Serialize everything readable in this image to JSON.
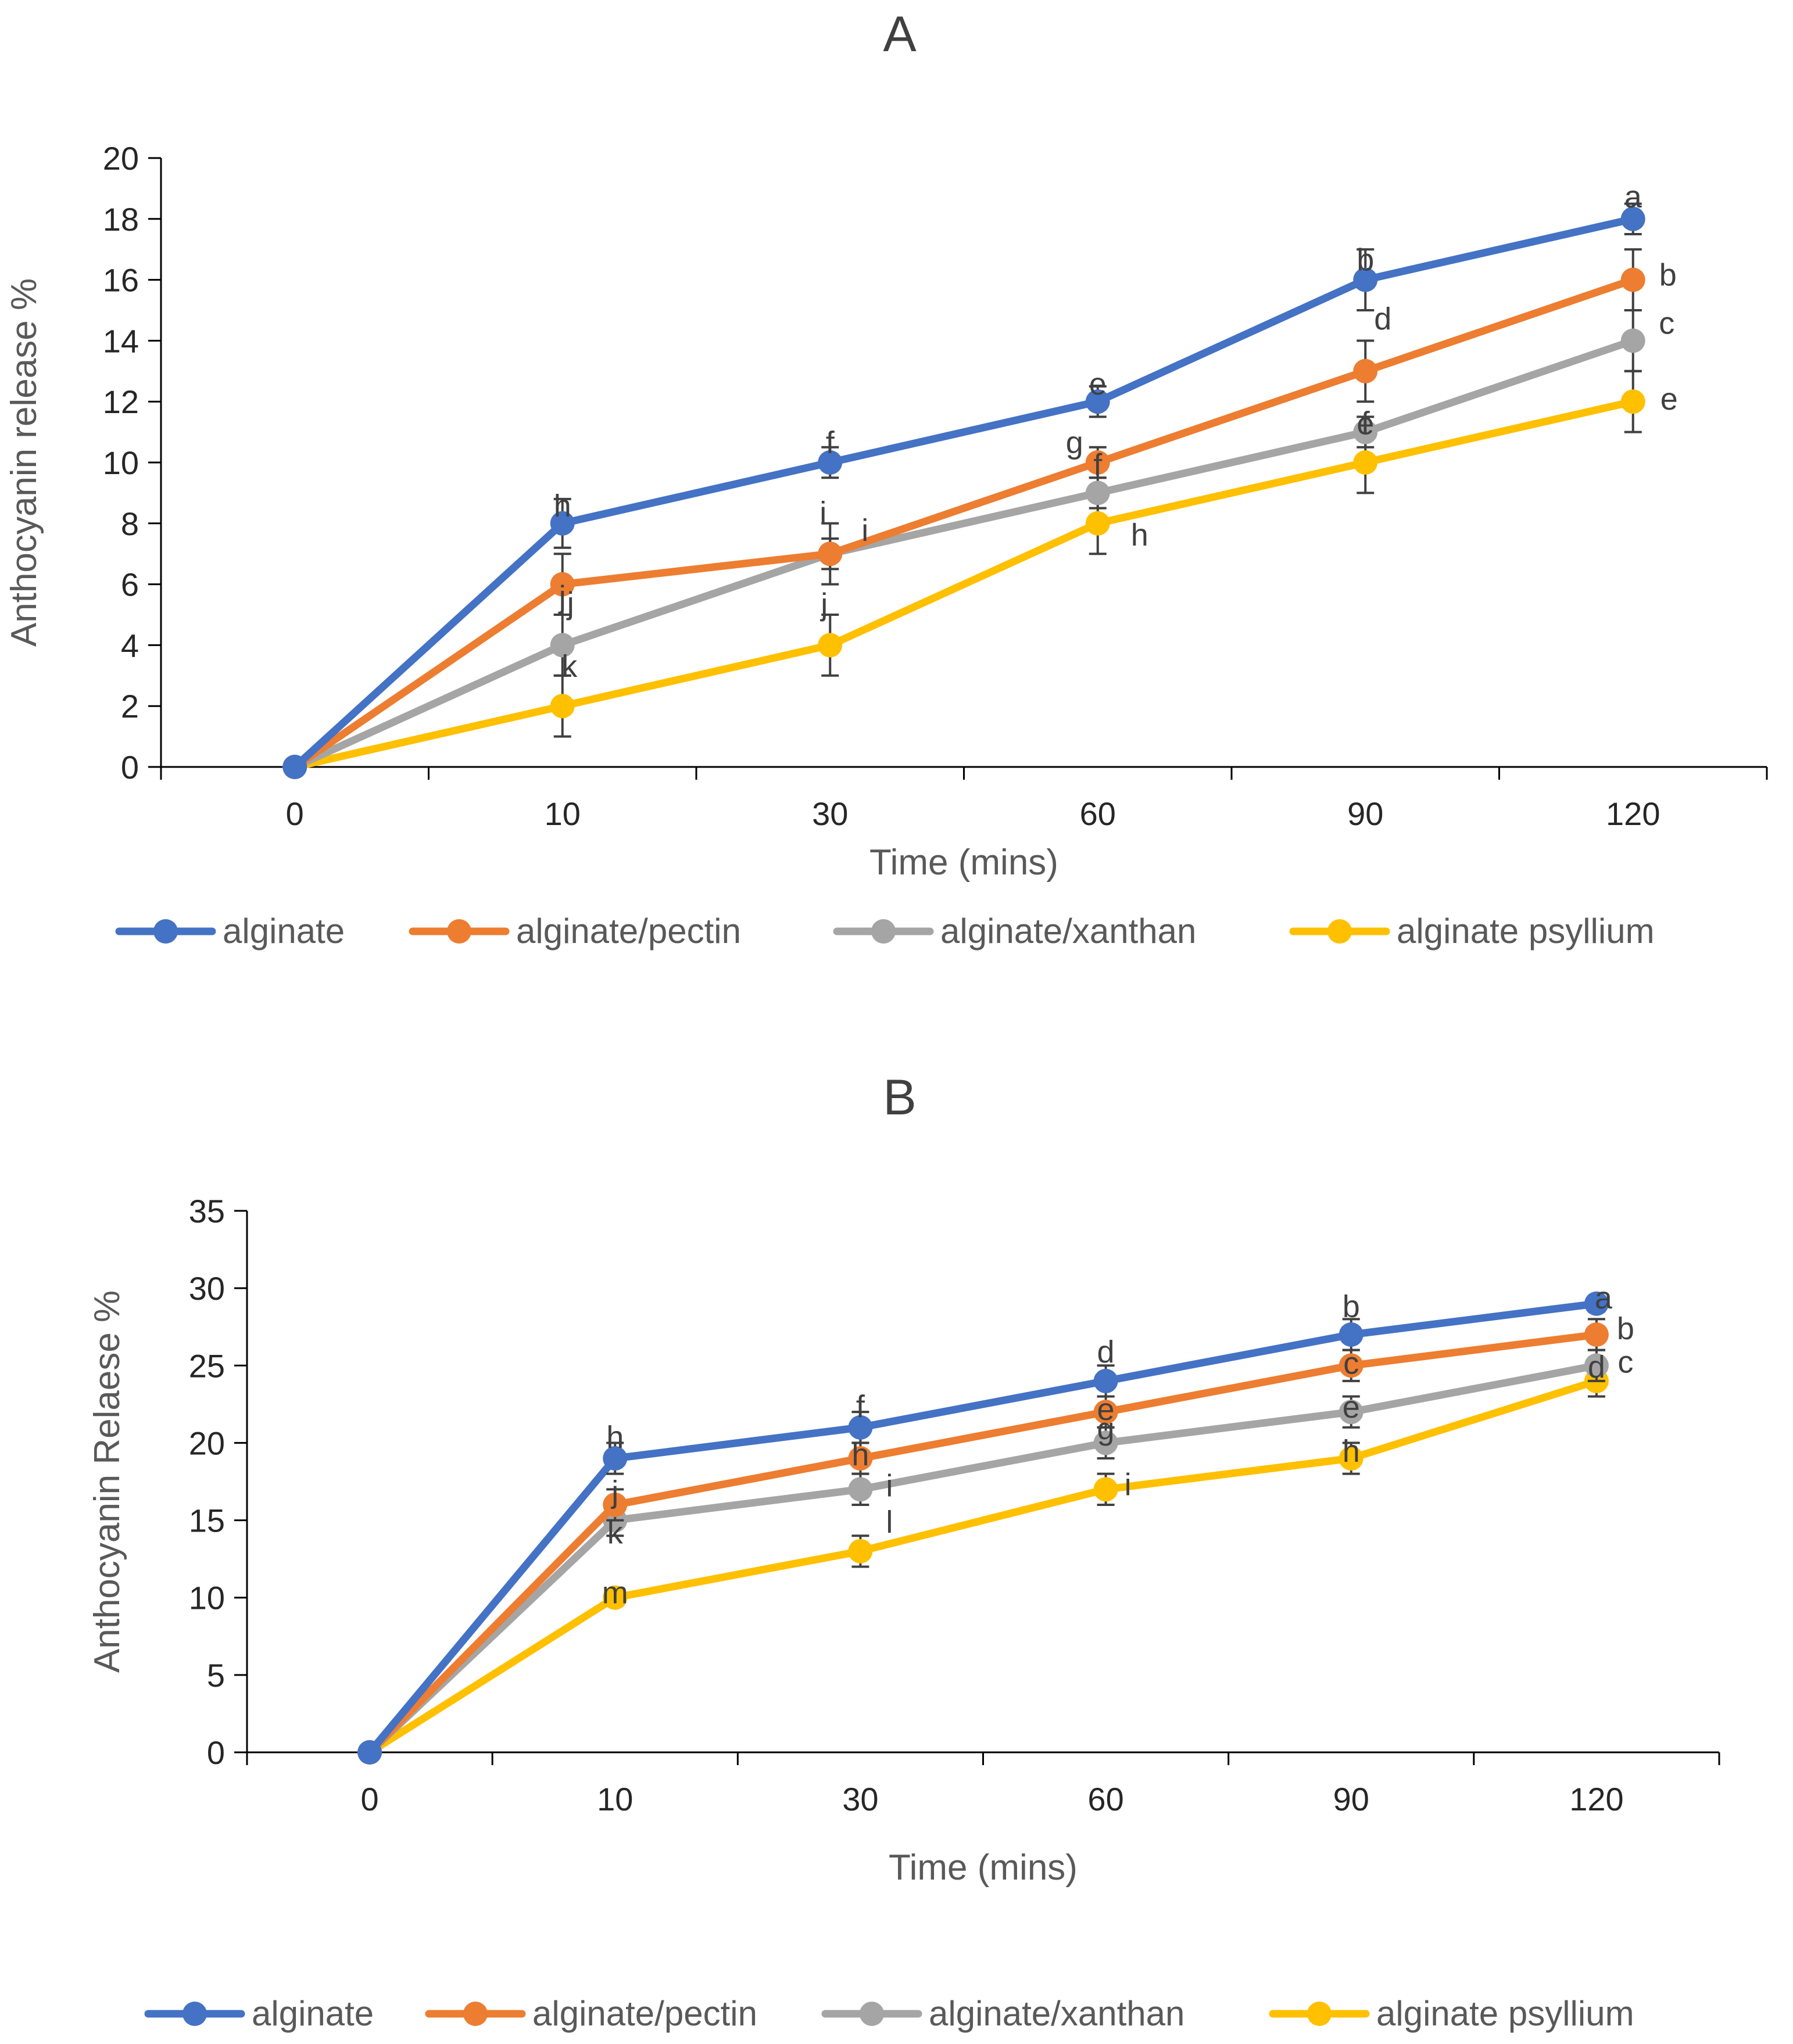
{
  "chart_data": [
    {
      "type": "line",
      "title": "A",
      "xlabel": "Time (mins)",
      "ylabel": "Anthocyanin release %",
      "categories": [
        "0",
        "10",
        "30",
        "60",
        "90",
        "120"
      ],
      "ylim": [
        0,
        20
      ],
      "yticks": [
        "0",
        "2",
        "4",
        "6",
        "8",
        "10",
        "12",
        "14",
        "16",
        "18",
        "20"
      ],
      "legend_position": "bottom",
      "grid": false,
      "series": [
        {
          "name": "alginate",
          "color": "#4472C4",
          "values": [
            0,
            8,
            10,
            12,
            16,
            18
          ],
          "errors": [
            0,
            0.8,
            0.5,
            0.5,
            1,
            0.5
          ],
          "letters": [
            "",
            "h",
            "f",
            "e",
            "b",
            "a"
          ]
        },
        {
          "name": "alginate/pectin",
          "color": "#ED7D31",
          "values": [
            0,
            6,
            7,
            10,
            13,
            16
          ],
          "errors": [
            0,
            1,
            0.5,
            0.5,
            1,
            1
          ],
          "letters": [
            "",
            "j",
            "i",
            "g",
            "d",
            "b"
          ]
        },
        {
          "name": "alginate/xanthan",
          "color": "#A5A5A5",
          "values": [
            0,
            4,
            7,
            9,
            11,
            14
          ],
          "errors": [
            0,
            1,
            1,
            0.5,
            0.5,
            1
          ],
          "letters": [
            "",
            "j",
            "i",
            "f",
            "e",
            "c"
          ]
        },
        {
          "name": "alginate psyllium",
          "color": "#FFC000",
          "values": [
            0,
            2,
            4,
            8,
            10,
            12
          ],
          "errors": [
            0,
            1,
            1,
            1,
            1,
            1
          ],
          "letters": [
            "",
            "k",
            "j",
            "h",
            "f",
            "e"
          ]
        }
      ]
    },
    {
      "type": "line",
      "title": "B",
      "xlabel": "Time (mins)",
      "ylabel": "Anthocyanin Relaese %",
      "categories": [
        "0",
        "10",
        "30",
        "60",
        "90",
        "120"
      ],
      "ylim": [
        0,
        35
      ],
      "yticks": [
        "0",
        "5",
        "10",
        "15",
        "20",
        "25",
        "30",
        "35"
      ],
      "legend_position": "bottom",
      "grid": false,
      "series": [
        {
          "name": "alginate",
          "color": "#4472C4",
          "values": [
            0,
            19,
            21,
            24,
            27,
            29
          ],
          "errors": [
            0,
            1,
            1,
            1,
            1,
            0.5
          ],
          "letters": [
            "",
            "h",
            "f",
            "d",
            "b",
            "a"
          ]
        },
        {
          "name": "alginate/pectin",
          "color": "#ED7D31",
          "values": [
            0,
            16,
            19,
            22,
            25,
            27
          ],
          "errors": [
            0,
            1,
            1,
            1,
            1,
            1
          ],
          "letters": [
            "",
            "j",
            "h",
            "e",
            "c",
            "b"
          ]
        },
        {
          "name": "alginate/xanthan",
          "color": "#A5A5A5",
          "values": [
            0,
            15,
            17,
            20,
            22,
            25
          ],
          "errors": [
            0,
            1,
            1,
            1,
            1,
            1
          ],
          "letters": [
            "",
            "k",
            "i",
            "g",
            "e",
            "c"
          ]
        },
        {
          "name": "alginate psyllium",
          "color": "#FFC000",
          "values": [
            0,
            10,
            13,
            17,
            19,
            24
          ],
          "errors": [
            0,
            0.5,
            1,
            1,
            1,
            1
          ],
          "letters": [
            "",
            "m",
            "l",
            "i",
            "h",
            "d"
          ]
        }
      ]
    }
  ]
}
